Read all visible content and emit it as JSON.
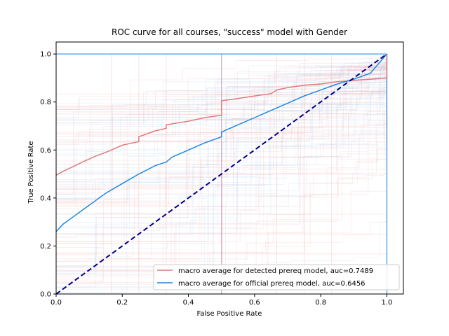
{
  "chart_data": {
    "type": "line",
    "title": "ROC curve for all courses, \"success\" model with Gender",
    "xlabel": "False Positive Rate",
    "ylabel": "True Positive Rate",
    "xlim": [
      0.0,
      1.05
    ],
    "ylim": [
      0.0,
      1.05
    ],
    "x_ticks": [
      "0.0",
      "0.2",
      "0.4",
      "0.6",
      "0.8",
      "1.0"
    ],
    "y_ticks": [
      "0.0",
      "0.2",
      "0.4",
      "0.6",
      "0.8",
      "1.0"
    ],
    "grid": false,
    "legend_position": "lower right",
    "colors": {
      "detected": "#e07b7b",
      "official": "#1e88e5",
      "diagonal": "#00008b",
      "background_red": "#f4a0a0",
      "background_blue": "#9ec5f0"
    },
    "series": [
      {
        "name": "macro average for detected prereq model, auc=0.7489",
        "x": [
          0.0,
          0.02,
          0.05,
          0.08,
          0.12,
          0.15,
          0.167,
          0.2,
          0.25,
          0.25,
          0.3,
          0.333,
          0.333,
          0.4,
          0.45,
          0.5,
          0.5,
          0.55,
          0.6,
          0.65,
          0.667,
          0.7,
          0.75,
          0.8,
          0.85,
          0.9,
          0.95,
          1.0,
          1.0
        ],
        "y": [
          0.495,
          0.51,
          0.53,
          0.55,
          0.575,
          0.59,
          0.6,
          0.62,
          0.635,
          0.655,
          0.68,
          0.69,
          0.705,
          0.72,
          0.735,
          0.745,
          0.805,
          0.815,
          0.825,
          0.835,
          0.85,
          0.86,
          0.87,
          0.875,
          0.885,
          0.89,
          0.895,
          0.9,
          1.0
        ]
      },
      {
        "name": "macro average for official prereq model, auc=0.6456",
        "x": [
          0.0,
          0.02,
          0.05,
          0.08,
          0.12,
          0.15,
          0.2,
          0.25,
          0.3,
          0.333,
          0.35,
          0.4,
          0.45,
          0.5,
          0.5,
          0.55,
          0.6,
          0.65,
          0.7,
          0.75,
          0.8,
          0.85,
          0.9,
          0.95,
          1.0
        ],
        "y": [
          0.26,
          0.29,
          0.32,
          0.35,
          0.39,
          0.42,
          0.46,
          0.5,
          0.535,
          0.55,
          0.57,
          0.6,
          0.63,
          0.655,
          0.675,
          0.705,
          0.735,
          0.765,
          0.795,
          0.825,
          0.85,
          0.875,
          0.895,
          0.92,
          1.0
        ]
      },
      {
        "x": [
          0.0,
          1.0
        ],
        "y": [
          0.0,
          1.0
        ]
      }
    ],
    "legend": [
      "macro average for detected prereq model, auc=0.7489",
      "macro average for official prereq model, auc=0.6456"
    ]
  }
}
